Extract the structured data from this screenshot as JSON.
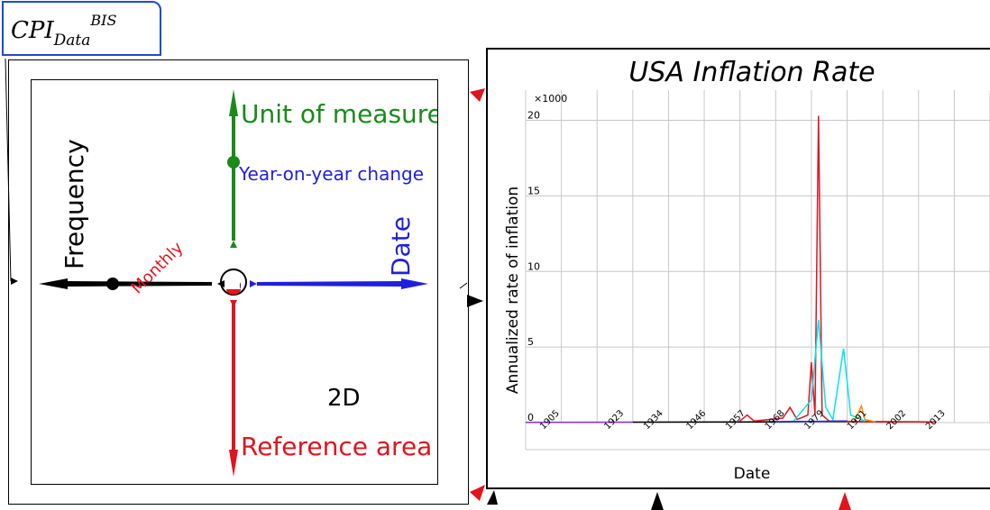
{
  "panel_tab": {
    "title_main": "CPI",
    "title_sub": "Data",
    "title_sup": "BIS"
  },
  "dimension_explorer": {
    "view_label": "2D",
    "axes": {
      "up": {
        "dimension": "Unit of measure",
        "value": "Year-on-year change",
        "color": "#1a8a1a"
      },
      "left": {
        "dimension": "Frequency",
        "value": "Monthly",
        "color": "#000000"
      },
      "right": {
        "dimension": "Date",
        "color": "#1f1fe0"
      },
      "down": {
        "dimension": "Reference area",
        "color": "#e0141e"
      }
    },
    "value_color": "#1f1fe0",
    "frequency_value_color": "#e0141e"
  },
  "chart_data": {
    "type": "line",
    "title": "USA Inflation Rate",
    "xlabel": "Date",
    "ylabel": "Annualized rate of inflation",
    "y_multiplier": "×1000",
    "ylim": [
      0,
      22
    ],
    "yticks": [
      0,
      5,
      10,
      15,
      20
    ],
    "xlim": [
      1900,
      2030
    ],
    "xticks": [
      "1905",
      "1923",
      "1934",
      "1946",
      "1957",
      "1968",
      "1979",
      "1991",
      "2002",
      "2013"
    ],
    "grid": true,
    "series": [
      {
        "color": "#8a2be2",
        "points": [
          [
            1900,
            0.02
          ],
          [
            1930,
            0.03
          ]
        ]
      },
      {
        "color": "#000000",
        "points": [
          [
            1930,
            0.03
          ],
          [
            1965,
            0.05
          ],
          [
            1980,
            0.08
          ],
          [
            2015,
            0.05
          ]
        ]
      },
      {
        "color": "#e0141e",
        "points": [
          [
            1960,
            0.1
          ],
          [
            1962,
            0.5
          ],
          [
            1964,
            0.1
          ],
          [
            1972,
            0.3
          ],
          [
            1974,
            1.0
          ],
          [
            1976,
            0.2
          ],
          [
            1979,
            0.5
          ],
          [
            1980,
            4.0
          ],
          [
            1981,
            0.5
          ],
          [
            1982,
            20.3
          ],
          [
            1983,
            0.5
          ],
          [
            1985,
            0.1
          ],
          [
            2000,
            0.05
          ],
          [
            2015,
            0.05
          ]
        ]
      },
      {
        "color": "#00e5ee",
        "points": [
          [
            1975,
            0.1
          ],
          [
            1980,
            1.5
          ],
          [
            1982,
            6.8
          ],
          [
            1984,
            1.0
          ],
          [
            1986,
            0.2
          ],
          [
            1989,
            4.9
          ],
          [
            1991,
            0.5
          ],
          [
            1995,
            0.1
          ]
        ]
      },
      {
        "color": "#ff8c00",
        "points": [
          [
            1992,
            0.1
          ],
          [
            1994,
            1.1
          ],
          [
            1995,
            0.2
          ],
          [
            1998,
            0.05
          ]
        ]
      },
      {
        "color": "#1f1fe0",
        "points": [
          [
            1970,
            0.05
          ],
          [
            1990,
            0.1
          ]
        ]
      }
    ]
  }
}
